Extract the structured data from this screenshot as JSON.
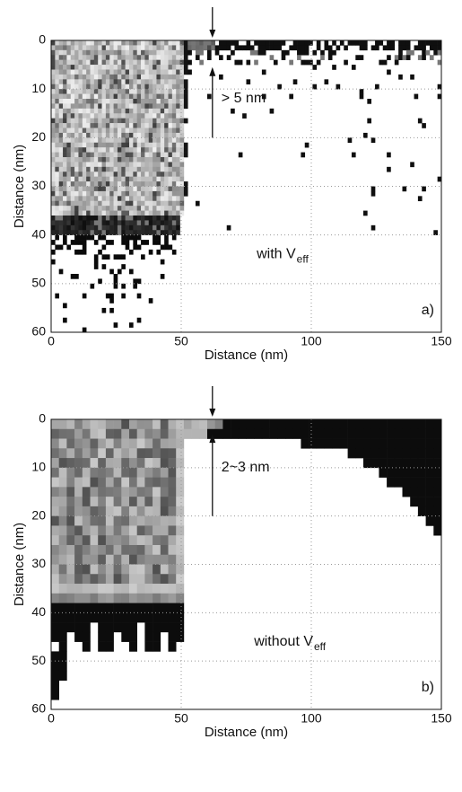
{
  "chart_data": [
    {
      "type": "heatmap",
      "xlabel": "Distance (nm)",
      "ylabel": "Distance (nm)",
      "xlim": [
        0,
        150
      ],
      "ylim": [
        0,
        60
      ],
      "y_inverted": true,
      "xticks": [
        0,
        50,
        100,
        150
      ],
      "yticks": [
        0,
        10,
        20,
        30,
        40,
        50,
        60
      ],
      "grid": true,
      "annotation": {
        "measure": "> 5 nm",
        "label": "with V",
        "label_sub": "eff"
      },
      "panel_label": "a)"
    },
    {
      "type": "heatmap",
      "xlabel": "Distance (nm)",
      "ylabel": "Distance (nm)",
      "xlim": [
        0,
        150
      ],
      "ylim": [
        0,
        60
      ],
      "y_inverted": true,
      "xticks": [
        0,
        50,
        100,
        150
      ],
      "yticks": [
        0,
        10,
        20,
        30,
        40,
        50,
        60
      ],
      "grid": true,
      "annotation": {
        "measure": "2~3 nm",
        "label": "without V",
        "label_sub": "eff"
      },
      "panel_label": "b)"
    }
  ]
}
